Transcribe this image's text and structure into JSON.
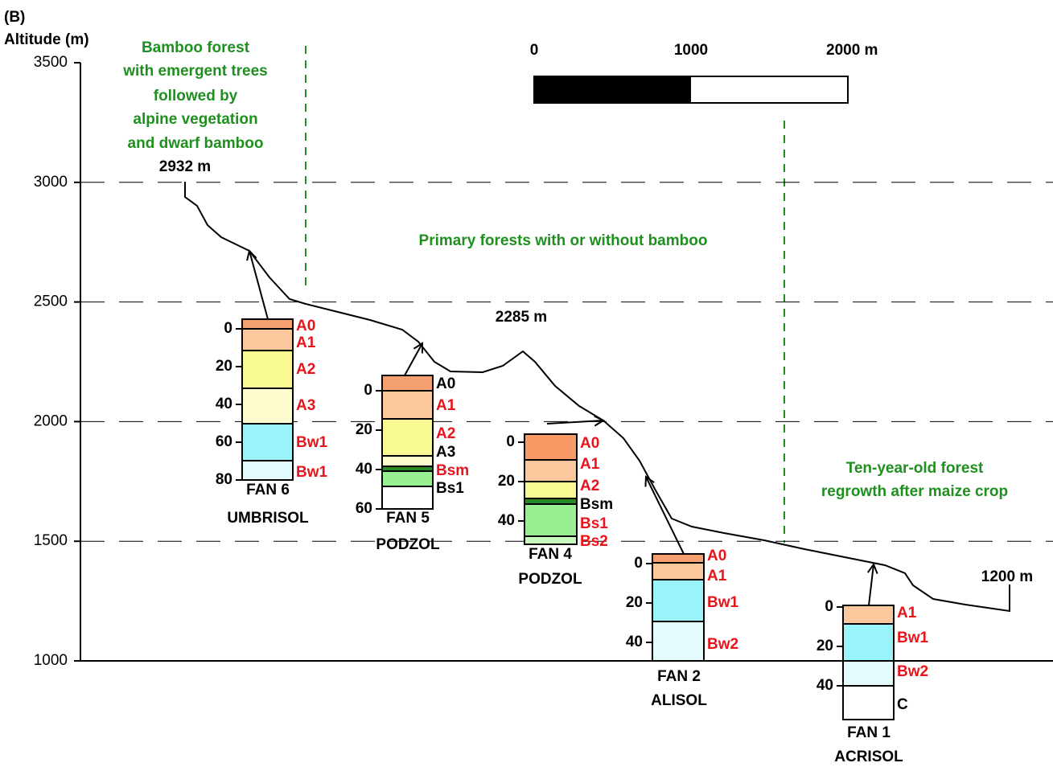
{
  "panel_label": "(B)",
  "y_axis": {
    "label": "Altitude (m)",
    "ticks": [
      3500,
      3000,
      2500,
      2000,
      1500,
      1000
    ]
  },
  "scale_bar": {
    "labels": [
      "0",
      "1000",
      "2000 m"
    ]
  },
  "zones": [
    {
      "lines": [
        "Bamboo forest",
        "with emergent trees",
        "followed by",
        "alpine vegetation",
        "and dwarf bamboo"
      ]
    },
    {
      "lines": [
        "Primary forests with or without bamboo"
      ]
    },
    {
      "lines": [
        "Ten-year-old forest",
        "regrowth after maize crop"
      ]
    }
  ],
  "elevations": [
    "2932 m",
    "2285 m",
    "1200 m"
  ],
  "profiles": [
    {
      "name": "FAN 6",
      "soil": "UMBRISOL",
      "depth_ticks": [
        0,
        20,
        40,
        60,
        80
      ],
      "horizons": [
        "A0",
        "A1",
        "A2",
        "A3",
        "Bw1",
        "Bw1"
      ]
    },
    {
      "name": "FAN 5",
      "soil": "PODZOL",
      "depth_ticks": [
        0,
        20,
        40,
        60
      ],
      "horizons": [
        "A0",
        "A1",
        "A2",
        "A3",
        "Bsm",
        "Bs1"
      ]
    },
    {
      "name": "FAN 4",
      "soil": "PODZOL",
      "depth_ticks": [
        0,
        20,
        40
      ],
      "horizons": [
        "A0",
        "A1",
        "A2",
        "Bsm",
        "Bs1",
        "Bs2"
      ]
    },
    {
      "name": "FAN 2",
      "soil": "ALISOL",
      "depth_ticks": [
        0,
        20,
        40
      ],
      "horizons": [
        "A0",
        "A1",
        "Bw1",
        "Bw2"
      ]
    },
    {
      "name": "FAN 1",
      "soil": "ACRISOL",
      "depth_ticks": [
        0,
        20,
        40
      ],
      "horizons": [
        "A1",
        "Bw1",
        "Bw2",
        "C"
      ]
    }
  ]
}
